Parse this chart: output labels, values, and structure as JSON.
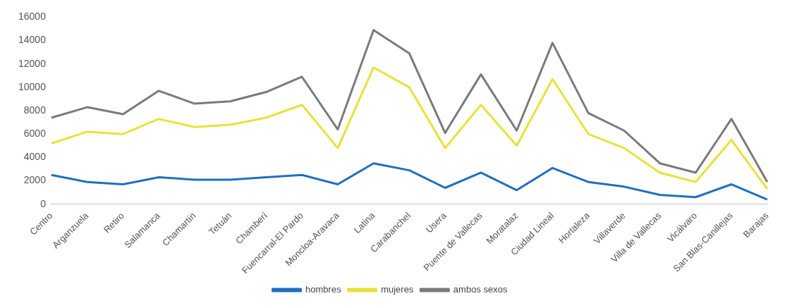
{
  "chart_data": {
    "type": "line",
    "categories": [
      "Centro",
      "Arganzuela",
      "Retiro",
      "Salamanca",
      "Chamartín",
      "Tetuán",
      "Chamberí",
      "Fuencarral-El Pardo",
      "Moncloa-Aravaca",
      "Latina",
      "Carabanchel",
      "Usera",
      "Puente de Vallecas",
      "Moratalaz",
      "Ciudad Lineal",
      "Hortaleza",
      "Villaverde",
      "Villa de Vallecas",
      "Vicálvaro",
      "San Blas-Canillejas",
      "Barajas"
    ],
    "series": [
      {
        "name": "hombres",
        "color": "#1f6fc0",
        "values": [
          2500,
          1900,
          1700,
          2300,
          2100,
          2100,
          2300,
          2500,
          1700,
          3500,
          2900,
          1400,
          2700,
          1200,
          3100,
          1900,
          1500,
          800,
          600,
          1700,
          400
        ]
      },
      {
        "name": "mujeres",
        "color": "#e8e23a",
        "values": [
          5200,
          6200,
          6000,
          7300,
          6600,
          6800,
          7400,
          8500,
          4800,
          11700,
          10000,
          4800,
          8500,
          5000,
          10700,
          6000,
          4800,
          2700,
          1900,
          5500,
          1300
        ]
      },
      {
        "name": "ambos sexos",
        "color": "#7a7a7a",
        "values": [
          7400,
          8300,
          7700,
          9700,
          8600,
          8800,
          9600,
          10900,
          6400,
          14900,
          12900,
          6100,
          11100,
          6300,
          13800,
          7800,
          6300,
          3500,
          2700,
          7300,
          1900
        ]
      }
    ],
    "ylim": [
      0,
      16000
    ],
    "yticks": [
      0,
      2000,
      4000,
      6000,
      8000,
      10000,
      12000,
      14000,
      16000
    ],
    "grid": false,
    "legend": "bottom",
    "marker": "none",
    "line_style": "solid"
  }
}
